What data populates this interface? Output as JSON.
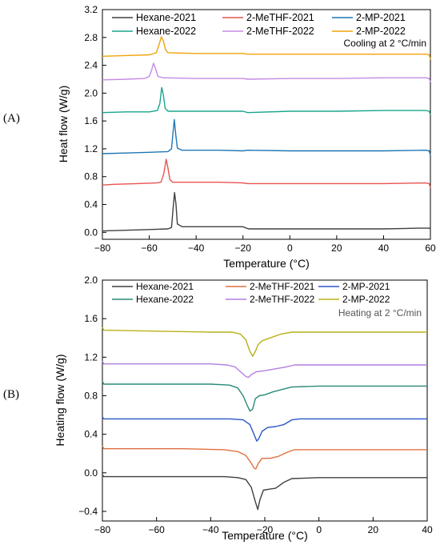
{
  "chart_data": [
    {
      "panel_label": "(A)",
      "type": "line",
      "xlabel": "Temperature (°C)",
      "ylabel": "Heat flow (W/g)",
      "xlim": [
        -80,
        60
      ],
      "ylim": [
        -0.1,
        3.2
      ],
      "x_ticks": [
        -80,
        -60,
        -40,
        -20,
        0,
        20,
        40,
        60
      ],
      "x_tick_labels": [
        "−80",
        "−60",
        "−40",
        "−20",
        "0",
        "20",
        "40",
        "60"
      ],
      "y_ticks": [
        0.0,
        0.4,
        0.8,
        1.2,
        1.6,
        2.0,
        2.4,
        2.8,
        3.2
      ],
      "y_tick_labels": [
        "0.0",
        "0.4",
        "0.8",
        "1.2",
        "1.6",
        "2.0",
        "2.4",
        "2.8",
        "3.2"
      ],
      "annotation": "Cooling at 2 °C/min",
      "legend_position": "top",
      "series": [
        {
          "name": "Hexane-2021",
          "color": "#404040",
          "points": [
            [
              -80,
              0.02
            ],
            [
              -70,
              0.03
            ],
            [
              -60,
              0.04
            ],
            [
              -52,
              0.05
            ],
            [
              -50.5,
              0.07
            ],
            [
              -49.8,
              0.35
            ],
            [
              -49.2,
              0.57
            ],
            [
              -48.6,
              0.4
            ],
            [
              -48,
              0.12
            ],
            [
              -46,
              0.08
            ],
            [
              -40,
              0.08
            ],
            [
              -30,
              0.08
            ],
            [
              -20,
              0.08
            ],
            [
              -18.5,
              0.06
            ],
            [
              -17.5,
              0.05
            ],
            [
              0,
              0.05
            ],
            [
              20,
              0.05
            ],
            [
              40,
              0.05
            ],
            [
              55,
              0.06
            ],
            [
              59.5,
              0.06
            ],
            [
              60,
              0.05
            ]
          ]
        },
        {
          "name": "2-MeTHF-2021",
          "color": "#e8534f",
          "points": [
            [
              -80,
              0.68
            ],
            [
              -75,
              0.69
            ],
            [
              -65,
              0.7
            ],
            [
              -57,
              0.71
            ],
            [
              -55,
              0.72
            ],
            [
              -53.8,
              0.84
            ],
            [
              -52.8,
              1.05
            ],
            [
              -52,
              0.92
            ],
            [
              -51.2,
              0.76
            ],
            [
              -50,
              0.72
            ],
            [
              -40,
              0.72
            ],
            [
              -30,
              0.72
            ],
            [
              -20,
              0.71
            ],
            [
              -18,
              0.7
            ],
            [
              0,
              0.7
            ],
            [
              20,
              0.7
            ],
            [
              40,
              0.7
            ],
            [
              58,
              0.71
            ],
            [
              59.5,
              0.7
            ],
            [
              60,
              0.64
            ]
          ]
        },
        {
          "name": "2-MP-2021",
          "color": "#1f77b4",
          "points": [
            [
              -80,
              1.13
            ],
            [
              -70,
              1.14
            ],
            [
              -60,
              1.15
            ],
            [
              -52,
              1.16
            ],
            [
              -50.5,
              1.2
            ],
            [
              -49.8,
              1.45
            ],
            [
              -49.3,
              1.62
            ],
            [
              -48.7,
              1.4
            ],
            [
              -48,
              1.21
            ],
            [
              -46,
              1.18
            ],
            [
              -40,
              1.18
            ],
            [
              -30,
              1.18
            ],
            [
              -20,
              1.17
            ],
            [
              -18,
              1.18
            ],
            [
              0,
              1.17
            ],
            [
              20,
              1.17
            ],
            [
              40,
              1.17
            ],
            [
              58,
              1.18
            ],
            [
              59.5,
              1.17
            ],
            [
              60,
              1.11
            ]
          ]
        },
        {
          "name": "Hexane-2022",
          "color": "#1aa58c",
          "points": [
            [
              -80,
              1.72
            ],
            [
              -70,
              1.73
            ],
            [
              -60,
              1.73
            ],
            [
              -56.5,
              1.75
            ],
            [
              -55.5,
              1.85
            ],
            [
              -54.7,
              2.08
            ],
            [
              -54,
              1.98
            ],
            [
              -53.2,
              1.78
            ],
            [
              -52,
              1.74
            ],
            [
              -45,
              1.74
            ],
            [
              -30,
              1.74
            ],
            [
              -20,
              1.74
            ],
            [
              -18,
              1.72
            ],
            [
              0,
              1.74
            ],
            [
              20,
              1.74
            ],
            [
              40,
              1.75
            ],
            [
              58,
              1.75
            ],
            [
              59.5,
              1.74
            ],
            [
              60,
              1.69
            ]
          ]
        },
        {
          "name": "2-MeTHF-2022",
          "color": "#c58be4",
          "points": [
            [
              -80,
              2.19
            ],
            [
              -70,
              2.2
            ],
            [
              -62,
              2.21
            ],
            [
              -60,
              2.24
            ],
            [
              -59,
              2.33
            ],
            [
              -58.2,
              2.43
            ],
            [
              -57.3,
              2.35
            ],
            [
              -56.3,
              2.24
            ],
            [
              -54,
              2.22
            ],
            [
              -40,
              2.21
            ],
            [
              -20,
              2.21
            ],
            [
              -18,
              2.2
            ],
            [
              0,
              2.21
            ],
            [
              20,
              2.21
            ],
            [
              40,
              2.22
            ],
            [
              58,
              2.22
            ],
            [
              59.5,
              2.21
            ],
            [
              60,
              2.16
            ]
          ]
        },
        {
          "name": "2-MP-2022",
          "color": "#f0a30a",
          "points": [
            [
              -80,
              2.53
            ],
            [
              -70,
              2.54
            ],
            [
              -60,
              2.55
            ],
            [
              -57,
              2.58
            ],
            [
              -55.8,
              2.7
            ],
            [
              -54.8,
              2.81
            ],
            [
              -54,
              2.75
            ],
            [
              -53,
              2.62
            ],
            [
              -52,
              2.58
            ],
            [
              -40,
              2.57
            ],
            [
              -20,
              2.57
            ],
            [
              -18,
              2.56
            ],
            [
              0,
              2.56
            ],
            [
              20,
              2.56
            ],
            [
              40,
              2.56
            ],
            [
              58,
              2.56
            ],
            [
              59.5,
              2.55
            ],
            [
              60,
              2.48
            ]
          ]
        }
      ]
    },
    {
      "panel_label": "(B)",
      "type": "line",
      "xlabel": "Temperature (°C)",
      "ylabel": "Heating flow (W/g)",
      "xlim": [
        -80,
        40
      ],
      "ylim": [
        -0.5,
        2.0
      ],
      "x_ticks": [
        -80,
        -60,
        -40,
        -20,
        0,
        20,
        40
      ],
      "x_tick_labels": [
        "−80",
        "−60",
        "−40",
        "−20",
        "0",
        "20",
        "40"
      ],
      "y_ticks": [
        -0.4,
        0.0,
        0.4,
        0.8,
        1.2,
        1.6,
        2.0
      ],
      "y_tick_labels": [
        "−0.4",
        "0.0",
        "0.4",
        "0.8",
        "1.2",
        "1.6",
        "2.0"
      ],
      "annotation": "Heating at 2 °C/min",
      "legend_position": "top",
      "series": [
        {
          "name": "Hexane-2021",
          "color": "#404040",
          "points": [
            [
              -80,
              -0.02
            ],
            [
              -79.5,
              -0.04
            ],
            [
              -70,
              -0.04
            ],
            [
              -50,
              -0.04
            ],
            [
              -35,
              -0.04
            ],
            [
              -30,
              -0.05
            ],
            [
              -27,
              -0.07
            ],
            [
              -25,
              -0.15
            ],
            [
              -23.5,
              -0.3
            ],
            [
              -22.6,
              -0.38
            ],
            [
              -21.8,
              -0.28
            ],
            [
              -20.5,
              -0.18
            ],
            [
              -18.5,
              -0.17
            ],
            [
              -16,
              -0.16
            ],
            [
              -13,
              -0.1
            ],
            [
              -10,
              -0.06
            ],
            [
              0,
              -0.05
            ],
            [
              20,
              -0.05
            ],
            [
              40,
              -0.05
            ]
          ]
        },
        {
          "name": "2-MeTHF-2021",
          "color": "#e07040",
          "points": [
            [
              -80,
              0.28
            ],
            [
              -79.5,
              0.25
            ],
            [
              -70,
              0.25
            ],
            [
              -50,
              0.25
            ],
            [
              -35,
              0.24
            ],
            [
              -30,
              0.22
            ],
            [
              -27,
              0.18
            ],
            [
              -25,
              0.1
            ],
            [
              -24,
              0.05
            ],
            [
              -23.3,
              0.04
            ],
            [
              -22.4,
              0.1
            ],
            [
              -21,
              0.15
            ],
            [
              -18,
              0.15
            ],
            [
              -15,
              0.17
            ],
            [
              -12,
              0.21
            ],
            [
              -9,
              0.24
            ],
            [
              0,
              0.24
            ],
            [
              20,
              0.24
            ],
            [
              40,
              0.24
            ]
          ]
        },
        {
          "name": "2-MP-2021",
          "color": "#2b55c8",
          "points": [
            [
              -80,
              0.58
            ],
            [
              -79.5,
              0.56
            ],
            [
              -60,
              0.56
            ],
            [
              -40,
              0.56
            ],
            [
              -33,
              0.56
            ],
            [
              -28,
              0.55
            ],
            [
              -25.5,
              0.5
            ],
            [
              -24,
              0.4
            ],
            [
              -23,
              0.33
            ],
            [
              -22.3,
              0.35
            ],
            [
              -21,
              0.43
            ],
            [
              -19,
              0.47
            ],
            [
              -16,
              0.48
            ],
            [
              -13,
              0.5
            ],
            [
              -10,
              0.55
            ],
            [
              -7,
              0.56
            ],
            [
              0,
              0.56
            ],
            [
              20,
              0.56
            ],
            [
              40,
              0.56
            ]
          ]
        },
        {
          "name": "Hexane-2022",
          "color": "#2a8a78",
          "points": [
            [
              -80,
              0.95
            ],
            [
              -79.5,
              0.92
            ],
            [
              -60,
              0.92
            ],
            [
              -40,
              0.92
            ],
            [
              -33,
              0.91
            ],
            [
              -30,
              0.88
            ],
            [
              -28,
              0.8
            ],
            [
              -26.5,
              0.7
            ],
            [
              -25.5,
              0.64
            ],
            [
              -24.5,
              0.66
            ],
            [
              -23.5,
              0.77
            ],
            [
              -22,
              0.8
            ],
            [
              -20,
              0.81
            ],
            [
              -17,
              0.84
            ],
            [
              -13,
              0.87
            ],
            [
              -10,
              0.89
            ],
            [
              0,
              0.9
            ],
            [
              20,
              0.9
            ],
            [
              40,
              0.9
            ]
          ]
        },
        {
          "name": "2-MeTHF-2022",
          "color": "#b37ee0",
          "points": [
            [
              -80,
              1.16
            ],
            [
              -79.5,
              1.13
            ],
            [
              -60,
              1.13
            ],
            [
              -40,
              1.13
            ],
            [
              -34,
              1.12
            ],
            [
              -31,
              1.1
            ],
            [
              -29,
              1.05
            ],
            [
              -27,
              1.0
            ],
            [
              -26,
              0.99
            ],
            [
              -25,
              1.02
            ],
            [
              -23,
              1.05
            ],
            [
              -20,
              1.06
            ],
            [
              -16,
              1.08
            ],
            [
              -12,
              1.1
            ],
            [
              -9,
              1.12
            ],
            [
              0,
              1.12
            ],
            [
              20,
              1.12
            ],
            [
              40,
              1.12
            ]
          ]
        },
        {
          "name": "2-MP-2022",
          "color": "#b8b01a",
          "points": [
            [
              -80,
              1.51
            ],
            [
              -79.5,
              1.48
            ],
            [
              -60,
              1.47
            ],
            [
              -40,
              1.46
            ],
            [
              -32,
              1.46
            ],
            [
              -29,
              1.44
            ],
            [
              -27,
              1.38
            ],
            [
              -25.5,
              1.26
            ],
            [
              -24.5,
              1.21
            ],
            [
              -23.5,
              1.26
            ],
            [
              -22.5,
              1.33
            ],
            [
              -21,
              1.37
            ],
            [
              -18,
              1.4
            ],
            [
              -14,
              1.44
            ],
            [
              -10,
              1.46
            ],
            [
              0,
              1.46
            ],
            [
              20,
              1.46
            ],
            [
              40,
              1.46
            ]
          ]
        }
      ]
    }
  ]
}
